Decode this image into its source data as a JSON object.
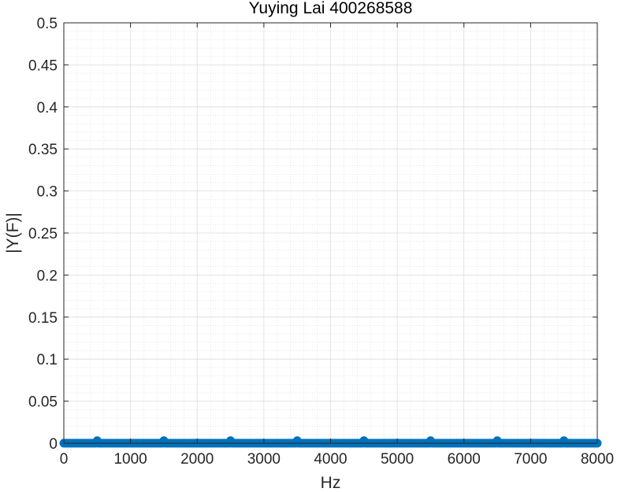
{
  "chart_data": {
    "type": "scatter",
    "title": "Yuying Lai 400268588",
    "xlabel": "Hz",
    "ylabel": "|Y(F)|",
    "xlim": [
      0,
      8000
    ],
    "ylim": [
      0,
      0.5
    ],
    "x_ticks": [
      "0",
      "1000",
      "2000",
      "3000",
      "4000",
      "5000",
      "6000",
      "7000",
      "8000"
    ],
    "y_ticks": [
      "0",
      "0.05",
      "0.1",
      "0.15",
      "0.2",
      "0.25",
      "0.3",
      "0.35",
      "0.4",
      "0.45",
      "0.5"
    ],
    "grid": true,
    "minor_grid": true,
    "series": [
      {
        "style": "stem",
        "color": "#0072BD",
        "x_start": 0,
        "x_end": 8000,
        "x_step": 20,
        "baseline_value": 0,
        "peaks": [
          {
            "x": 500,
            "y": 0.003
          },
          {
            "x": 1500,
            "y": 0.003
          },
          {
            "x": 2500,
            "y": 0.003
          },
          {
            "x": 3500,
            "y": 0.003
          },
          {
            "x": 4500,
            "y": 0.003
          },
          {
            "x": 5500,
            "y": 0.003
          },
          {
            "x": 6500,
            "y": 0.003
          },
          {
            "x": 7500,
            "y": 0.003
          }
        ]
      }
    ]
  }
}
